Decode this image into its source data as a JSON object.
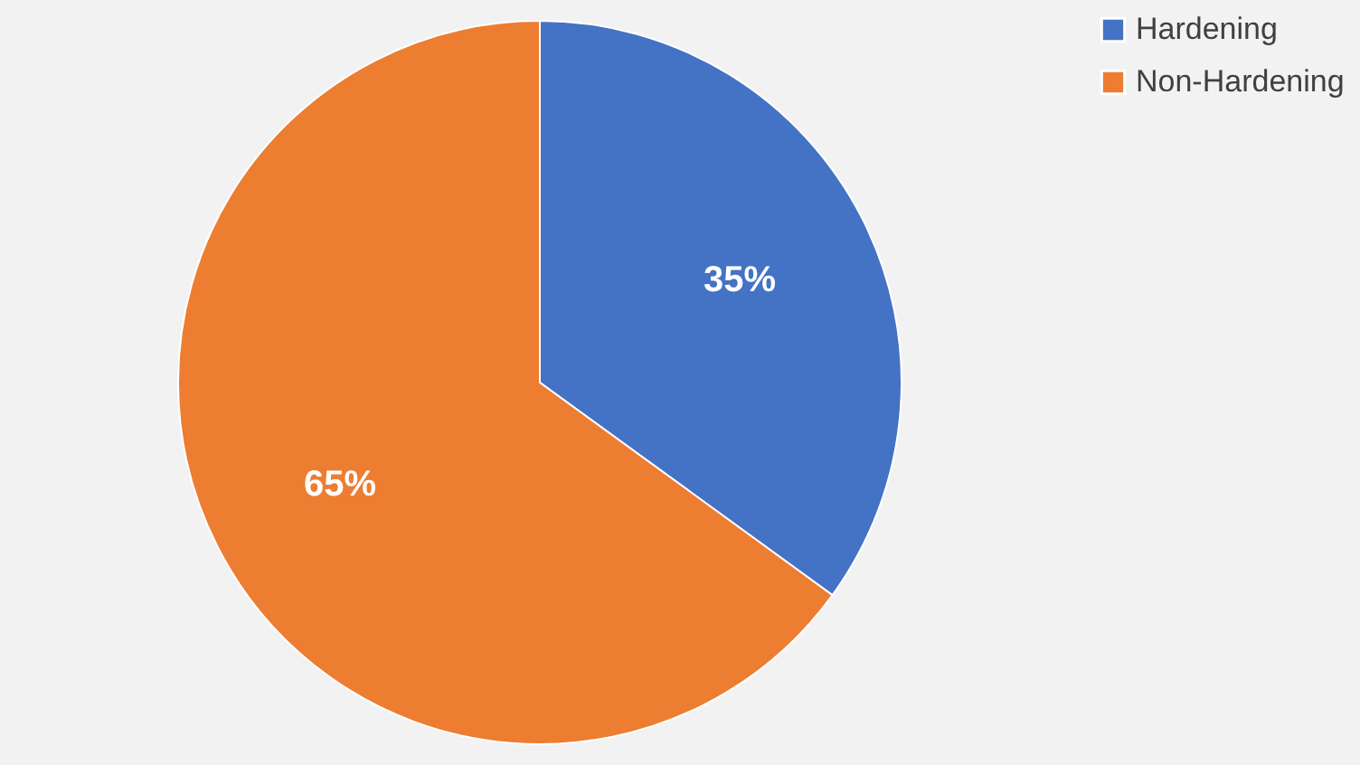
{
  "chart_data": {
    "type": "pie",
    "categories": [
      "Hardening",
      "Non-Hardening"
    ],
    "values": [
      35,
      65
    ],
    "colors": [
      "#4472c4",
      "#ed7d31"
    ],
    "value_labels": [
      "35%",
      "65%"
    ],
    "legend": "right"
  }
}
